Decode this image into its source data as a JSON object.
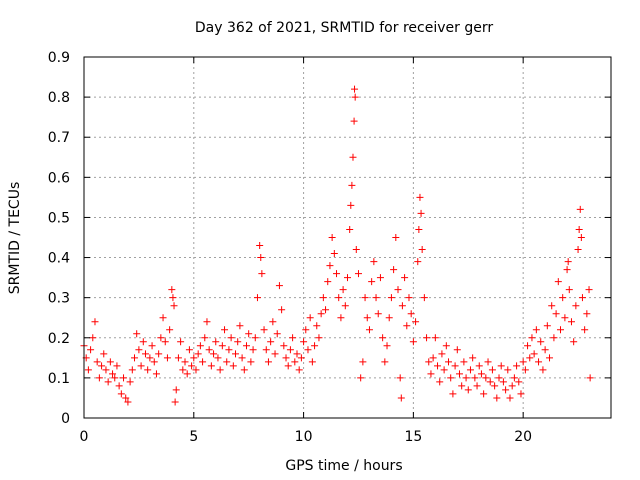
{
  "chart_data": {
    "type": "scatter",
    "title": "Day 362 of 2021, SRMTID for receiver gerr",
    "xlabel": "GPS time / hours",
    "ylabel": "SRMTID / TECUs",
    "xlim": [
      0,
      24
    ],
    "ylim": [
      0,
      0.9
    ],
    "xticks": [
      0,
      5,
      10,
      15,
      20
    ],
    "xtick_labels": [
      "0",
      "5",
      "10",
      "15",
      "20"
    ],
    "yticks": [
      0,
      0.1,
      0.2,
      0.3,
      0.4,
      0.5,
      0.6,
      0.7,
      0.8,
      0.9
    ],
    "ytick_labels": [
      "0",
      "0.1",
      "0.2",
      "0.3",
      "0.4",
      "0.5",
      "0.6",
      "0.7",
      "0.8",
      "0.9"
    ],
    "grid": true,
    "marker": "+",
    "color": "#ff0000",
    "series": [
      {
        "name": "SRMTID",
        "points": [
          [
            0.0,
            0.18
          ],
          [
            0.1,
            0.15
          ],
          [
            0.2,
            0.12
          ],
          [
            0.3,
            0.17
          ],
          [
            0.4,
            0.2
          ],
          [
            0.5,
            0.24
          ],
          [
            0.6,
            0.14
          ],
          [
            0.7,
            0.1
          ],
          [
            0.8,
            0.13
          ],
          [
            0.9,
            0.16
          ],
          [
            1.0,
            0.12
          ],
          [
            1.1,
            0.09
          ],
          [
            1.2,
            0.14
          ],
          [
            1.3,
            0.11
          ],
          [
            1.4,
            0.1
          ],
          [
            1.5,
            0.13
          ],
          [
            1.6,
            0.08
          ],
          [
            1.7,
            0.06
          ],
          [
            1.8,
            0.1
          ],
          [
            1.9,
            0.05
          ],
          [
            2.0,
            0.04
          ],
          [
            2.1,
            0.09
          ],
          [
            2.2,
            0.12
          ],
          [
            2.3,
            0.15
          ],
          [
            2.4,
            0.21
          ],
          [
            2.5,
            0.17
          ],
          [
            2.6,
            0.13
          ],
          [
            2.7,
            0.19
          ],
          [
            2.8,
            0.16
          ],
          [
            2.9,
            0.12
          ],
          [
            3.0,
            0.15
          ],
          [
            3.1,
            0.18
          ],
          [
            3.2,
            0.14
          ],
          [
            3.3,
            0.11
          ],
          [
            3.4,
            0.16
          ],
          [
            3.5,
            0.2
          ],
          [
            3.6,
            0.25
          ],
          [
            3.7,
            0.19
          ],
          [
            3.8,
            0.15
          ],
          [
            3.9,
            0.22
          ],
          [
            4.0,
            0.32
          ],
          [
            4.05,
            0.3
          ],
          [
            4.1,
            0.28
          ],
          [
            4.15,
            0.04
          ],
          [
            4.2,
            0.07
          ],
          [
            4.3,
            0.15
          ],
          [
            4.4,
            0.19
          ],
          [
            4.5,
            0.12
          ],
          [
            4.6,
            0.14
          ],
          [
            4.7,
            0.11
          ],
          [
            4.8,
            0.17
          ],
          [
            4.9,
            0.13
          ],
          [
            5.0,
            0.15
          ],
          [
            5.1,
            0.12
          ],
          [
            5.2,
            0.16
          ],
          [
            5.3,
            0.18
          ],
          [
            5.4,
            0.14
          ],
          [
            5.5,
            0.2
          ],
          [
            5.6,
            0.24
          ],
          [
            5.7,
            0.17
          ],
          [
            5.8,
            0.13
          ],
          [
            5.9,
            0.16
          ],
          [
            6.0,
            0.19
          ],
          [
            6.1,
            0.15
          ],
          [
            6.2,
            0.12
          ],
          [
            6.3,
            0.18
          ],
          [
            6.4,
            0.22
          ],
          [
            6.5,
            0.14
          ],
          [
            6.6,
            0.17
          ],
          [
            6.7,
            0.2
          ],
          [
            6.8,
            0.13
          ],
          [
            6.9,
            0.16
          ],
          [
            7.0,
            0.19
          ],
          [
            7.1,
            0.23
          ],
          [
            7.2,
            0.15
          ],
          [
            7.3,
            0.12
          ],
          [
            7.4,
            0.18
          ],
          [
            7.5,
            0.21
          ],
          [
            7.6,
            0.14
          ],
          [
            7.7,
            0.17
          ],
          [
            7.8,
            0.2
          ],
          [
            7.9,
            0.3
          ],
          [
            8.0,
            0.43
          ],
          [
            8.05,
            0.4
          ],
          [
            8.1,
            0.36
          ],
          [
            8.2,
            0.22
          ],
          [
            8.3,
            0.17
          ],
          [
            8.4,
            0.14
          ],
          [
            8.5,
            0.19
          ],
          [
            8.6,
            0.24
          ],
          [
            8.7,
            0.16
          ],
          [
            8.8,
            0.21
          ],
          [
            8.9,
            0.33
          ],
          [
            9.0,
            0.27
          ],
          [
            9.1,
            0.18
          ],
          [
            9.2,
            0.15
          ],
          [
            9.3,
            0.13
          ],
          [
            9.4,
            0.17
          ],
          [
            9.5,
            0.2
          ],
          [
            9.6,
            0.14
          ],
          [
            9.7,
            0.16
          ],
          [
            9.8,
            0.12
          ],
          [
            9.9,
            0.15
          ],
          [
            10.0,
            0.19
          ],
          [
            10.1,
            0.22
          ],
          [
            10.2,
            0.17
          ],
          [
            10.3,
            0.25
          ],
          [
            10.4,
            0.14
          ],
          [
            10.5,
            0.18
          ],
          [
            10.6,
            0.23
          ],
          [
            10.7,
            0.2
          ],
          [
            10.8,
            0.26
          ],
          [
            10.9,
            0.3
          ],
          [
            11.0,
            0.27
          ],
          [
            11.1,
            0.34
          ],
          [
            11.2,
            0.38
          ],
          [
            11.3,
            0.45
          ],
          [
            11.4,
            0.41
          ],
          [
            11.5,
            0.36
          ],
          [
            11.6,
            0.3
          ],
          [
            11.7,
            0.25
          ],
          [
            11.8,
            0.32
          ],
          [
            11.9,
            0.28
          ],
          [
            12.0,
            0.35
          ],
          [
            12.1,
            0.47
          ],
          [
            12.15,
            0.53
          ],
          [
            12.2,
            0.58
          ],
          [
            12.25,
            0.65
          ],
          [
            12.3,
            0.74
          ],
          [
            12.35,
            0.8
          ],
          [
            12.32,
            0.82
          ],
          [
            12.4,
            0.42
          ],
          [
            12.5,
            0.36
          ],
          [
            12.6,
            0.1
          ],
          [
            12.7,
            0.14
          ],
          [
            12.8,
            0.3
          ],
          [
            12.9,
            0.25
          ],
          [
            13.0,
            0.22
          ],
          [
            13.1,
            0.34
          ],
          [
            13.2,
            0.39
          ],
          [
            13.3,
            0.3
          ],
          [
            13.4,
            0.26
          ],
          [
            13.5,
            0.35
          ],
          [
            13.6,
            0.2
          ],
          [
            13.7,
            0.14
          ],
          [
            13.8,
            0.18
          ],
          [
            13.9,
            0.25
          ],
          [
            14.0,
            0.3
          ],
          [
            14.1,
            0.37
          ],
          [
            14.2,
            0.45
          ],
          [
            14.3,
            0.32
          ],
          [
            14.4,
            0.1
          ],
          [
            14.45,
            0.05
          ],
          [
            14.5,
            0.28
          ],
          [
            14.6,
            0.35
          ],
          [
            14.7,
            0.23
          ],
          [
            14.8,
            0.3
          ],
          [
            14.9,
            0.26
          ],
          [
            15.0,
            0.19
          ],
          [
            15.1,
            0.24
          ],
          [
            15.2,
            0.39
          ],
          [
            15.25,
            0.47
          ],
          [
            15.3,
            0.55
          ],
          [
            15.35,
            0.51
          ],
          [
            15.4,
            0.42
          ],
          [
            15.5,
            0.3
          ],
          [
            15.6,
            0.2
          ],
          [
            15.7,
            0.14
          ],
          [
            15.8,
            0.11
          ],
          [
            15.9,
            0.15
          ],
          [
            16.0,
            0.2
          ],
          [
            16.1,
            0.13
          ],
          [
            16.2,
            0.09
          ],
          [
            16.3,
            0.16
          ],
          [
            16.4,
            0.12
          ],
          [
            16.5,
            0.18
          ],
          [
            16.6,
            0.14
          ],
          [
            16.7,
            0.1
          ],
          [
            16.8,
            0.06
          ],
          [
            16.9,
            0.13
          ],
          [
            17.0,
            0.17
          ],
          [
            17.1,
            0.11
          ],
          [
            17.2,
            0.08
          ],
          [
            17.3,
            0.14
          ],
          [
            17.4,
            0.1
          ],
          [
            17.5,
            0.07
          ],
          [
            17.6,
            0.12
          ],
          [
            17.7,
            0.15
          ],
          [
            17.8,
            0.1
          ],
          [
            17.9,
            0.08
          ],
          [
            18.0,
            0.13
          ],
          [
            18.1,
            0.11
          ],
          [
            18.2,
            0.06
          ],
          [
            18.3,
            0.1
          ],
          [
            18.4,
            0.14
          ],
          [
            18.5,
            0.09
          ],
          [
            18.6,
            0.12
          ],
          [
            18.7,
            0.08
          ],
          [
            18.8,
            0.05
          ],
          [
            18.9,
            0.1
          ],
          [
            19.0,
            0.13
          ],
          [
            19.1,
            0.09
          ],
          [
            19.2,
            0.07
          ],
          [
            19.3,
            0.12
          ],
          [
            19.4,
            0.05
          ],
          [
            19.5,
            0.08
          ],
          [
            19.6,
            0.1
          ],
          [
            19.7,
            0.13
          ],
          [
            19.8,
            0.09
          ],
          [
            19.9,
            0.06
          ],
          [
            20.0,
            0.14
          ],
          [
            20.1,
            0.12
          ],
          [
            20.2,
            0.18
          ],
          [
            20.3,
            0.15
          ],
          [
            20.4,
            0.2
          ],
          [
            20.5,
            0.16
          ],
          [
            20.6,
            0.22
          ],
          [
            20.7,
            0.14
          ],
          [
            20.8,
            0.19
          ],
          [
            20.9,
            0.12
          ],
          [
            21.0,
            0.17
          ],
          [
            21.1,
            0.23
          ],
          [
            21.2,
            0.15
          ],
          [
            21.3,
            0.28
          ],
          [
            21.4,
            0.2
          ],
          [
            21.5,
            0.26
          ],
          [
            21.6,
            0.34
          ],
          [
            21.7,
            0.22
          ],
          [
            21.8,
            0.3
          ],
          [
            21.9,
            0.25
          ],
          [
            22.0,
            0.37
          ],
          [
            22.05,
            0.39
          ],
          [
            22.1,
            0.32
          ],
          [
            22.2,
            0.24
          ],
          [
            22.3,
            0.19
          ],
          [
            22.4,
            0.28
          ],
          [
            22.5,
            0.42
          ],
          [
            22.55,
            0.47
          ],
          [
            22.6,
            0.52
          ],
          [
            22.65,
            0.45
          ],
          [
            22.7,
            0.3
          ],
          [
            22.8,
            0.22
          ],
          [
            22.9,
            0.26
          ],
          [
            23.0,
            0.32
          ],
          [
            23.05,
            0.1
          ]
        ]
      }
    ]
  }
}
